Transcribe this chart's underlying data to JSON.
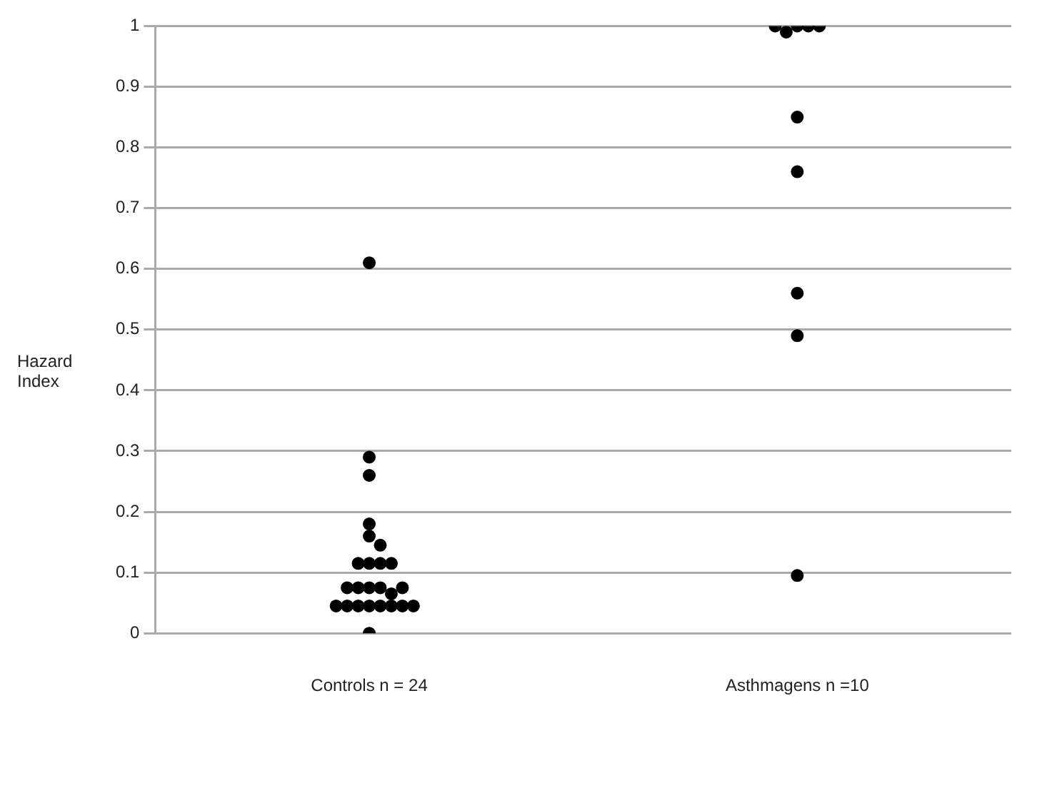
{
  "chart_data": {
    "type": "scatter",
    "ylabel": "Hazard Index",
    "categories": [
      "Controls n = 24",
      "Asthmagens n =10"
    ],
    "ylim": [
      0,
      1
    ],
    "yticks": [
      0,
      0.1,
      0.2,
      0.3,
      0.4,
      0.5,
      0.6,
      0.7,
      0.8,
      0.9,
      1
    ],
    "grid": "y",
    "legend": false,
    "marker": "circle",
    "series": [
      {
        "color": "#000000",
        "x": [
          "Controls n = 24",
          "Controls n = 24",
          "Controls n = 24",
          "Controls n = 24",
          "Controls n = 24",
          "Controls n = 24",
          "Controls n = 24",
          "Controls n = 24",
          "Controls n = 24",
          "Controls n = 24",
          "Controls n = 24",
          "Controls n = 24",
          "Controls n = 24",
          "Controls n = 24",
          "Controls n = 24",
          "Controls n = 24",
          "Controls n = 24",
          "Controls n = 24",
          "Controls n = 24",
          "Controls n = 24",
          "Controls n = 24",
          "Controls n = 24",
          "Controls n = 24",
          "Controls n = 24",
          "Controls n = 24",
          "Asthmagens n =10",
          "Asthmagens n =10",
          "Asthmagens n =10",
          "Asthmagens n =10",
          "Asthmagens n =10",
          "Asthmagens n =10",
          "Asthmagens n =10",
          "Asthmagens n =10",
          "Asthmagens n =10",
          "Asthmagens n =10"
        ],
        "values": [
          0.61,
          0.29,
          0.26,
          0.18,
          0.16,
          0.145,
          0.115,
          0.115,
          0.115,
          0.115,
          0.075,
          0.075,
          0.075,
          0.065,
          0.075,
          0.075,
          0.045,
          0.045,
          0.045,
          0.045,
          0.045,
          0.045,
          0.045,
          0.045,
          0,
          1,
          1,
          0.99,
          1,
          1,
          0.85,
          0.76,
          0.56,
          0.49,
          0.095
        ]
      }
    ]
  }
}
